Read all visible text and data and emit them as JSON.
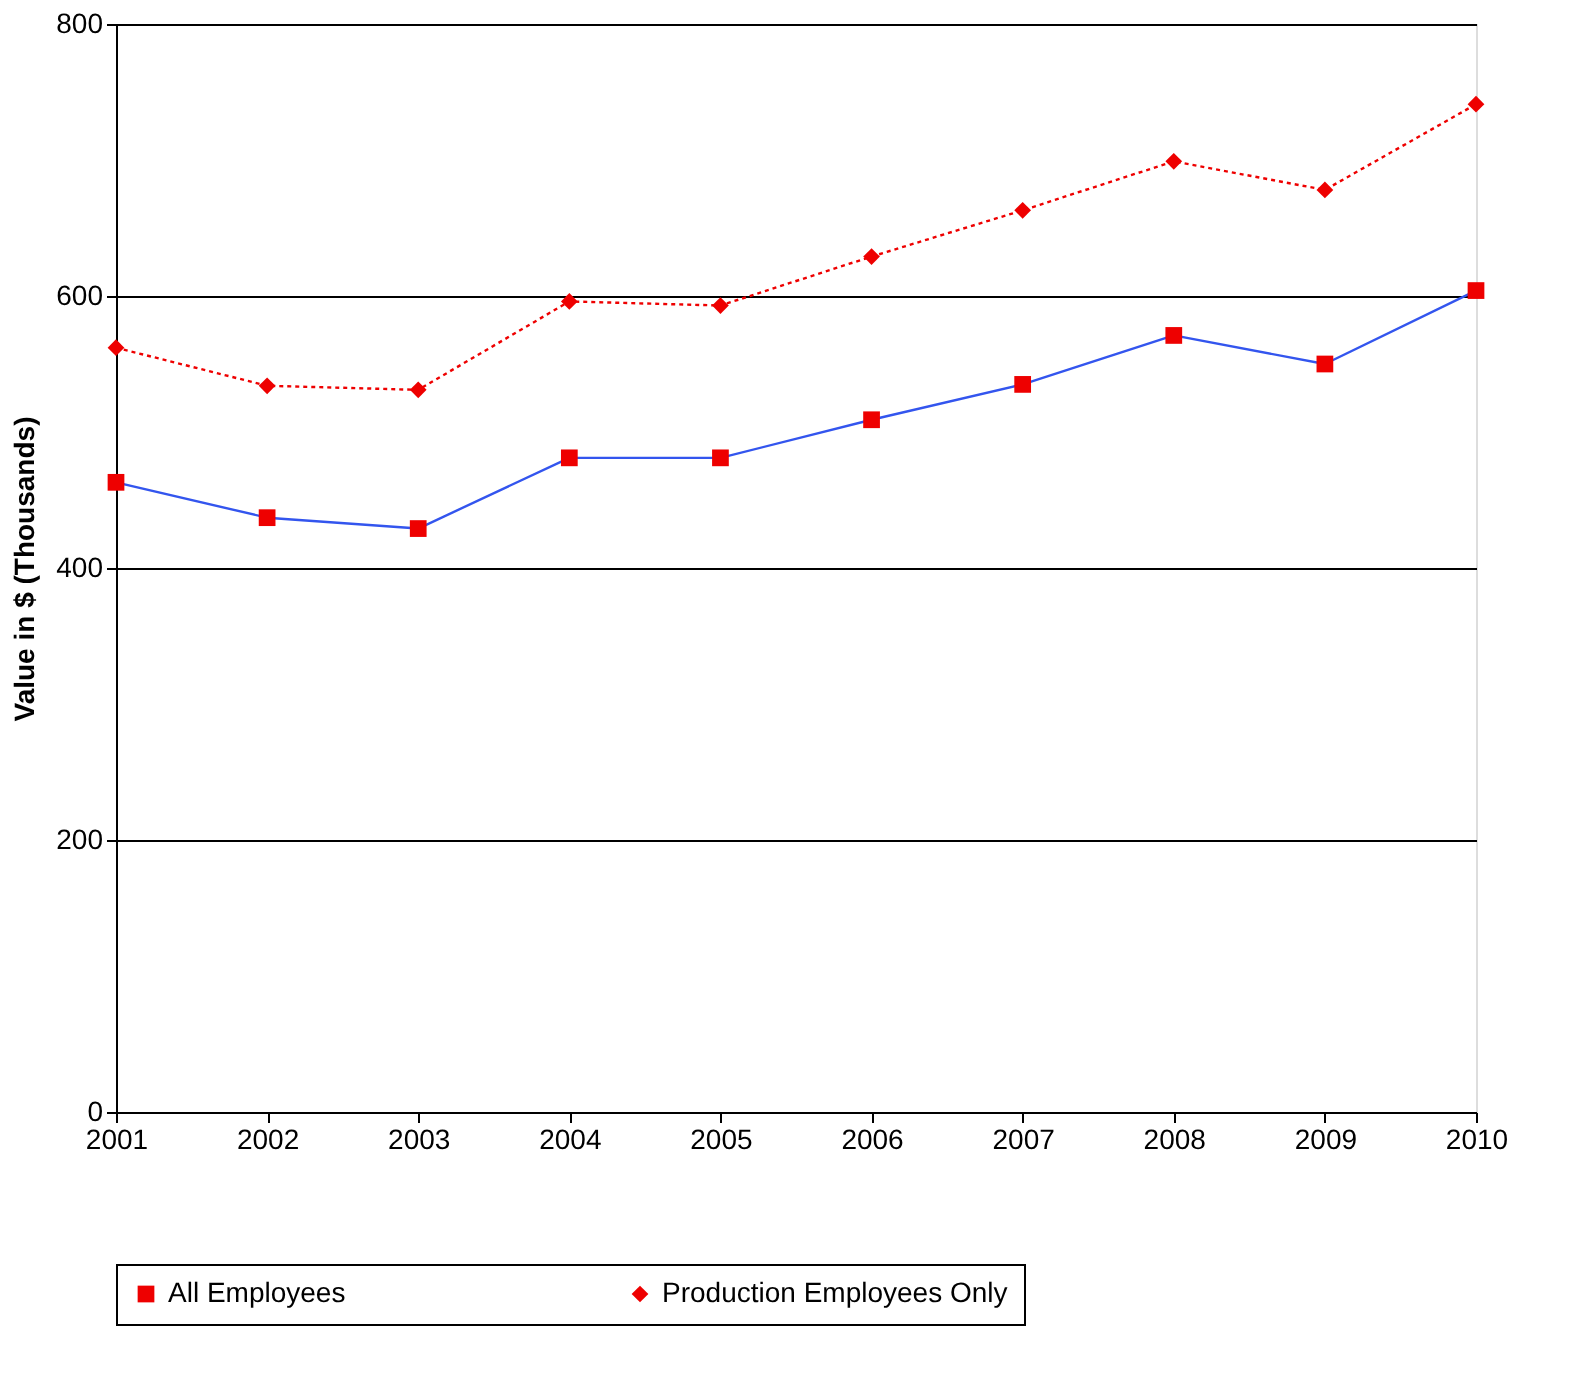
{
  "chart_data": {
    "type": "line",
    "ylabel": "Value in $ (Thousands)",
    "x": [
      2001,
      2002,
      2003,
      2004,
      2005,
      2006,
      2007,
      2008,
      2009,
      2010
    ],
    "xlim": [
      2001,
      2010
    ],
    "xticks": [
      2001,
      2002,
      2003,
      2004,
      2005,
      2006,
      2007,
      2008,
      2009,
      2010
    ],
    "ylim": [
      0,
      800
    ],
    "yticks": [
      0,
      200,
      400,
      600,
      800
    ],
    "grid": "y",
    "legend": "bottom",
    "series": [
      {
        "name": "All Employees",
        "color": "#3355ee",
        "colors": [
          "#ee0000",
          "#ee0000",
          "#ee0000",
          "#ee0000",
          "#ee0000",
          "#ee0000",
          "#ee0000",
          "#ee0000",
          "#ee0000",
          "#ee0000"
        ],
        "marker": "square",
        "line_style": "solid",
        "values": [
          463,
          437,
          429,
          481,
          481,
          509,
          535,
          571,
          550,
          604
        ]
      },
      {
        "name": "Production Employees Only",
        "color": "#ee0000",
        "marker": "diamond",
        "line_style": "dotted",
        "values": [
          562,
          534,
          531,
          596,
          593,
          629,
          663,
          699,
          678,
          741
        ]
      }
    ]
  }
}
